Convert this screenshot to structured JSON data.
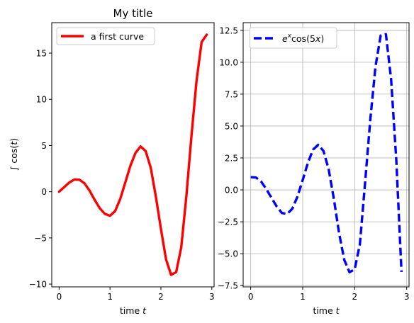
{
  "chart_data": [
    {
      "type": "line",
      "title": "My title",
      "xlabel": "time t",
      "ylabel": "∫ cos(t)",
      "xlim": [
        -0.145,
        3.045
      ],
      "ylim": [
        -10.3,
        18.3
      ],
      "xticks": [
        0,
        1,
        2,
        3
      ],
      "xtick_labels": [
        "0",
        "1",
        "2",
        "3"
      ],
      "yticks": [
        -10,
        -5,
        0,
        5,
        10,
        15
      ],
      "ytick_labels": [
        "−10",
        "−5",
        "0",
        "5",
        "10",
        "15"
      ],
      "grid": false,
      "legend_position": "upper-left",
      "series": [
        {
          "name": "a first curve",
          "color": "#ff0000",
          "style": "solid",
          "x": [
            0,
            0.1,
            0.2,
            0.3,
            0.4,
            0.5,
            0.6,
            0.7,
            0.8,
            0.9,
            1.0,
            1.1,
            1.2,
            1.3,
            1.4,
            1.5,
            1.6,
            1.7,
            1.8,
            1.9,
            2.0,
            2.1,
            2.2,
            2.3,
            2.4,
            2.5,
            2.6,
            2.7,
            2.8,
            2.9
          ],
          "y": [
            0,
            0.5,
            1.0,
            1.32,
            1.3,
            0.9,
            0.1,
            -0.9,
            -1.8,
            -2.4,
            -2.6,
            -2.1,
            -0.8,
            1.0,
            2.8,
            4.2,
            4.9,
            4.4,
            2.6,
            -0.5,
            -4.0,
            -7.3,
            -9.0,
            -8.7,
            -6.0,
            -0.5,
            6.0,
            12.0,
            16.2,
            17.0
          ]
        }
      ]
    },
    {
      "type": "line",
      "title": "",
      "xlabel": "time t",
      "ylabel": "",
      "xlim": [
        -0.145,
        3.045
      ],
      "ylim": [
        -7.6,
        13.1
      ],
      "xticks": [
        0,
        1,
        2,
        3
      ],
      "xtick_labels": [
        "0",
        "1",
        "2",
        "3"
      ],
      "yticks": [
        -7.5,
        -5.0,
        -2.5,
        0.0,
        2.5,
        5.0,
        7.5,
        10.0,
        12.5
      ],
      "ytick_labels": [
        "−7.5",
        "−5.0",
        "−2.5",
        "0.0",
        "2.5",
        "5.0",
        "7.5",
        "10.0",
        "12.5"
      ],
      "grid": true,
      "legend_position": "upper-left",
      "series": [
        {
          "name": "e^x cos(5x)",
          "color": "#0000ff",
          "style": "dashed",
          "x": [
            0,
            0.1,
            0.2,
            0.3,
            0.4,
            0.5,
            0.6,
            0.7,
            0.8,
            0.9,
            1.0,
            1.1,
            1.2,
            1.3,
            1.4,
            1.5,
            1.6,
            1.7,
            1.8,
            1.9,
            2.0,
            2.1,
            2.2,
            2.3,
            2.4,
            2.5,
            2.6,
            2.7,
            2.8,
            2.9
          ],
          "y": [
            1.0,
            0.97,
            0.66,
            0.06,
            -0.62,
            -1.3,
            -1.81,
            -1.89,
            -1.48,
            -0.52,
            0.77,
            2.12,
            3.16,
            3.53,
            3.04,
            1.6,
            -0.72,
            -3.4,
            -5.49,
            -6.45,
            -6.22,
            -4.25,
            0.57,
            5.5,
            9.67,
            12.1,
            12.2,
            8.68,
            2.33,
            -6.43
          ]
        }
      ]
    }
  ]
}
